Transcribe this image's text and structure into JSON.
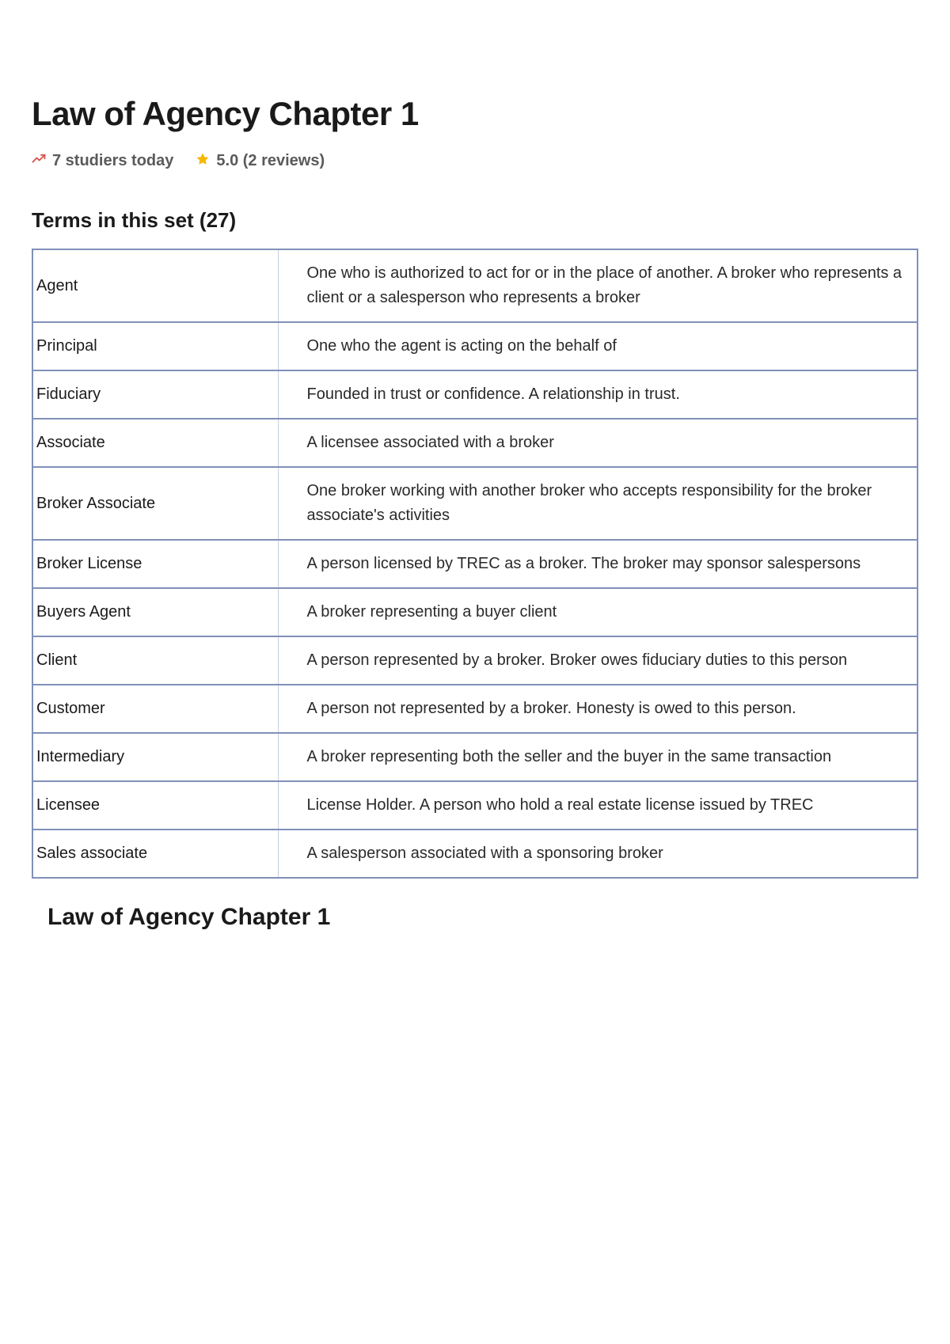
{
  "title": "Law of Agency Chapter 1",
  "meta": {
    "studiers": "7 studiers today",
    "rating": "5.0 (2 reviews)"
  },
  "section_heading": "Terms in this set (27)",
  "terms": [
    {
      "term": "Agent",
      "definition": "One who is authorized to act for or in the place of another. A broker who represents a client or a salesperson who represents a broker"
    },
    {
      "term": "Principal",
      "definition": "One who the agent is acting on the behalf of"
    },
    {
      "term": "Fiduciary",
      "definition": "Founded in trust or confidence. A relationship in trust."
    },
    {
      "term": "Associate",
      "definition": "A licensee associated with a broker"
    },
    {
      "term": "Broker Associate",
      "definition": "One broker working with another broker who accepts responsibility for the broker associate's activities"
    },
    {
      "term": "Broker License",
      "definition": "A person licensed by TREC as a broker. The broker may sponsor salespersons"
    },
    {
      "term": "Buyers Agent",
      "definition": "A broker representing a buyer client"
    },
    {
      "term": "Client",
      "definition": "A person represented by a broker. Broker owes fiduciary duties to this person"
    },
    {
      "term": "Customer",
      "definition": "A person not represented by a broker. Honesty is owed to this person."
    },
    {
      "term": "Intermediary",
      "definition": "A broker representing both the seller and the buyer in the same transaction"
    },
    {
      "term": "Licensee",
      "definition": "License Holder. A person who hold a real estate license issued by TREC"
    },
    {
      "term": "Sales associate",
      "definition": "A salesperson associated with a sponsoring broker"
    }
  ],
  "footer_title": "Law of Agency Chapter 1",
  "colors": {
    "border": "#8090b8",
    "inner_divider": "#c5cfe0",
    "trend_icon": "#d9534f",
    "star_icon": "#f5b800",
    "text_main": "#1a1a1a",
    "text_meta": "#5a5a5a",
    "background": "#ffffff"
  }
}
